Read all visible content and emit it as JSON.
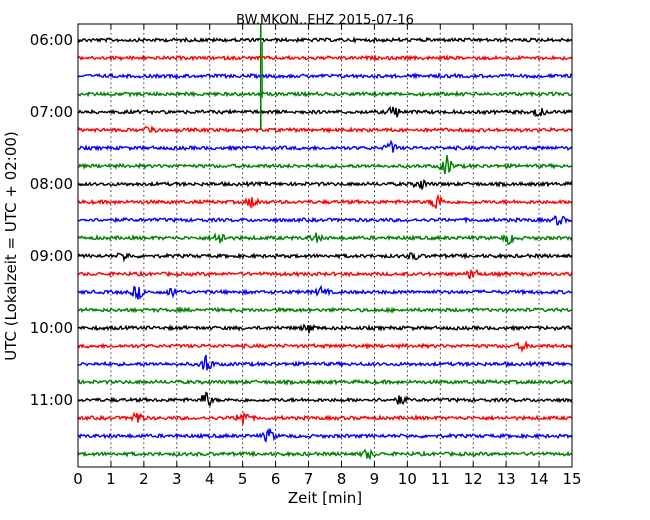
{
  "chart_data": {
    "type": "line",
    "title": "BW.MKON..EHZ 2015-07-16",
    "xlabel": "Zeit  [min]",
    "ylabel": "UTC (Lokalzeit = UTC + 02:00)",
    "xlim": [
      0,
      15
    ],
    "x_ticks": [
      "0",
      "1",
      "2",
      "3",
      "4",
      "5",
      "6",
      "7",
      "8",
      "9",
      "10",
      "11",
      "12",
      "13",
      "14",
      "15"
    ],
    "y_ticks": [
      "06:00",
      "07:00",
      "08:00",
      "09:00",
      "10:00",
      "11:00"
    ],
    "grid": true,
    "trace_start": "06:00",
    "trace_interval_min": 15,
    "trace_color_cycle": [
      "#000000",
      "#ff0000",
      "#0000ff",
      "#008000"
    ],
    "traces": [
      {
        "start": "06:00",
        "events": [
          {
            "t": 5.55,
            "amp": 1.0
          }
        ]
      },
      {
        "start": "06:15",
        "events": [
          {
            "t": 5.55,
            "amp": 1.0
          }
        ]
      },
      {
        "start": "06:30",
        "events": [
          {
            "t": 5.55,
            "amp": 1.0
          }
        ]
      },
      {
        "start": "06:45",
        "events": [
          {
            "t": 5.55,
            "amp": 1.0
          }
        ]
      },
      {
        "start": "07:00",
        "events": [
          {
            "t": 9.6,
            "amp": 0.3
          },
          {
            "t": 14.0,
            "amp": 0.2
          }
        ]
      },
      {
        "start": "07:15",
        "events": [
          {
            "t": 2.2,
            "amp": 0.2
          }
        ]
      },
      {
        "start": "07:30",
        "events": [
          {
            "t": 9.5,
            "amp": 0.25
          }
        ]
      },
      {
        "start": "07:45",
        "events": [
          {
            "t": 11.2,
            "amp": 0.45
          }
        ]
      },
      {
        "start": "08:00",
        "events": [
          {
            "t": 10.4,
            "amp": 0.25
          }
        ]
      },
      {
        "start": "08:15",
        "events": [
          {
            "t": 5.3,
            "amp": 0.25
          },
          {
            "t": 10.9,
            "amp": 0.4
          }
        ]
      },
      {
        "start": "08:30",
        "events": [
          {
            "t": 14.6,
            "amp": 0.2
          }
        ]
      },
      {
        "start": "08:45",
        "events": [
          {
            "t": 4.3,
            "amp": 0.3
          },
          {
            "t": 7.2,
            "amp": 0.2
          },
          {
            "t": 13.1,
            "amp": 0.25
          }
        ]
      },
      {
        "start": "09:00",
        "events": [
          {
            "t": 1.4,
            "amp": 0.15
          },
          {
            "t": 10.2,
            "amp": 0.15
          }
        ]
      },
      {
        "start": "09:15",
        "events": [
          {
            "t": 12.0,
            "amp": 0.25
          }
        ]
      },
      {
        "start": "09:30",
        "events": [
          {
            "t": 1.8,
            "amp": 0.3
          },
          {
            "t": 2.9,
            "amp": 0.2
          },
          {
            "t": 7.4,
            "amp": 0.2
          }
        ]
      },
      {
        "start": "09:45",
        "events": []
      },
      {
        "start": "10:00",
        "events": [
          {
            "t": 7.0,
            "amp": 0.2
          }
        ]
      },
      {
        "start": "10:15",
        "events": [
          {
            "t": 13.5,
            "amp": 0.15
          }
        ]
      },
      {
        "start": "10:30",
        "events": [
          {
            "t": 3.9,
            "amp": 0.45
          }
        ]
      },
      {
        "start": "10:45",
        "events": []
      },
      {
        "start": "11:00",
        "events": [
          {
            "t": 3.9,
            "amp": 0.35
          },
          {
            "t": 9.8,
            "amp": 0.2
          }
        ]
      },
      {
        "start": "11:15",
        "events": [
          {
            "t": 1.8,
            "amp": 0.3
          },
          {
            "t": 5.0,
            "amp": 0.4
          }
        ]
      },
      {
        "start": "11:30",
        "events": [
          {
            "t": 5.8,
            "amp": 0.3
          }
        ]
      },
      {
        "start": "11:45",
        "events": [
          {
            "t": 8.8,
            "amp": 0.2
          }
        ]
      }
    ]
  }
}
